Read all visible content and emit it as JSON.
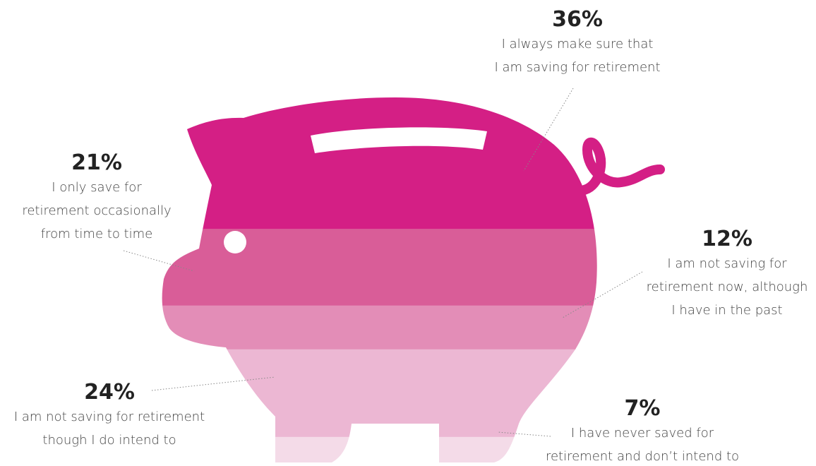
{
  "chart_data": {
    "type": "piggy-bands",
    "categories": [
      [
        "I always make sure that",
        "I am saving for retirement"
      ],
      [
        "I only save for",
        "retirement occasionally",
        "from time to time"
      ],
      [
        "I am not saving for",
        "retirement now, although",
        "I have in the past"
      ],
      [
        "I am not saving for retirement",
        "though I do intend to"
      ],
      [
        "I have never saved for",
        "retirement and don’t intend to"
      ]
    ],
    "values": [
      36,
      21,
      12,
      24,
      7
    ],
    "value_labels": [
      "36%",
      "21%",
      "12%",
      "24%",
      "7%"
    ],
    "colors": [
      "#d41f85",
      "#d95d98",
      "#e38db7",
      "#ecb7d3",
      "#f4dbe8"
    ]
  }
}
